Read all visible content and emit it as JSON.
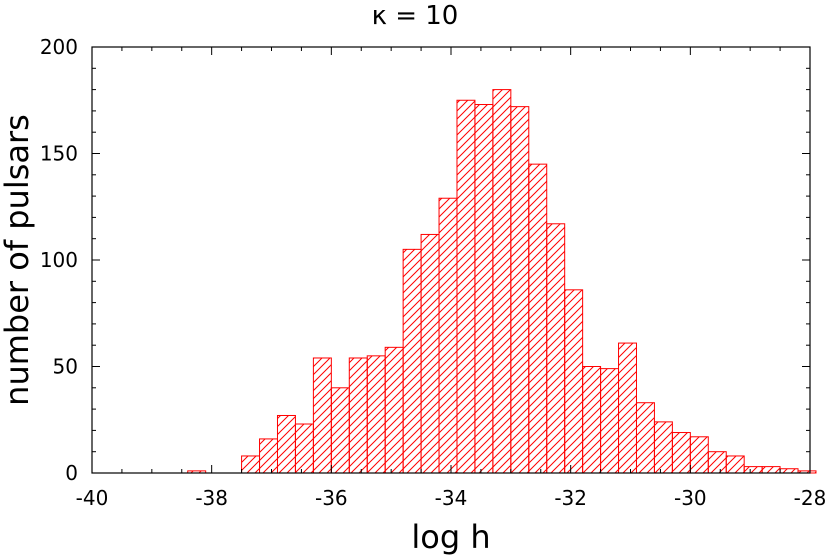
{
  "chart_data": {
    "type": "bar",
    "title": "κ = 10",
    "xlabel": "log h",
    "ylabel": "number of pulsars",
    "xlim": [
      -40,
      -28
    ],
    "ylim": [
      0,
      200
    ],
    "xticks": [
      -40,
      -38,
      -36,
      -34,
      -32,
      -30,
      -28
    ],
    "xtick_labels": [
      "-40",
      "-38",
      "-36",
      "-34",
      "-32",
      "-30",
      "-28"
    ],
    "yticks": [
      0,
      50,
      100,
      150,
      200
    ],
    "ytick_labels": [
      "0",
      "50",
      "100",
      "150",
      "200"
    ],
    "grid": false,
    "bar_fill": "diagonal-hatch",
    "bin_width": 0.3,
    "bins": [
      {
        "x": -38.4,
        "value": 1
      },
      {
        "x": -37.5,
        "value": 8
      },
      {
        "x": -37.2,
        "value": 16
      },
      {
        "x": -36.9,
        "value": 27
      },
      {
        "x": -36.6,
        "value": 23
      },
      {
        "x": -36.3,
        "value": 54
      },
      {
        "x": -36.0,
        "value": 40
      },
      {
        "x": -35.7,
        "value": 54
      },
      {
        "x": -35.4,
        "value": 55
      },
      {
        "x": -35.1,
        "value": 59
      },
      {
        "x": -34.8,
        "value": 105
      },
      {
        "x": -34.5,
        "value": 112
      },
      {
        "x": -34.2,
        "value": 129
      },
      {
        "x": -33.9,
        "value": 175
      },
      {
        "x": -33.6,
        "value": 173
      },
      {
        "x": -33.3,
        "value": 180
      },
      {
        "x": -33.0,
        "value": 172
      },
      {
        "x": -32.7,
        "value": 145
      },
      {
        "x": -32.4,
        "value": 117
      },
      {
        "x": -32.1,
        "value": 86
      },
      {
        "x": -31.8,
        "value": 50
      },
      {
        "x": -31.5,
        "value": 49
      },
      {
        "x": -31.2,
        "value": 61
      },
      {
        "x": -30.9,
        "value": 33
      },
      {
        "x": -30.6,
        "value": 24
      },
      {
        "x": -30.3,
        "value": 19
      },
      {
        "x": -30.0,
        "value": 17
      },
      {
        "x": -29.7,
        "value": 10
      },
      {
        "x": -29.4,
        "value": 8
      },
      {
        "x": -29.1,
        "value": 3
      },
      {
        "x": -28.8,
        "value": 3
      },
      {
        "x": -28.5,
        "value": 2
      },
      {
        "x": -28.2,
        "value": 1
      }
    ],
    "color": "#ff0000"
  }
}
